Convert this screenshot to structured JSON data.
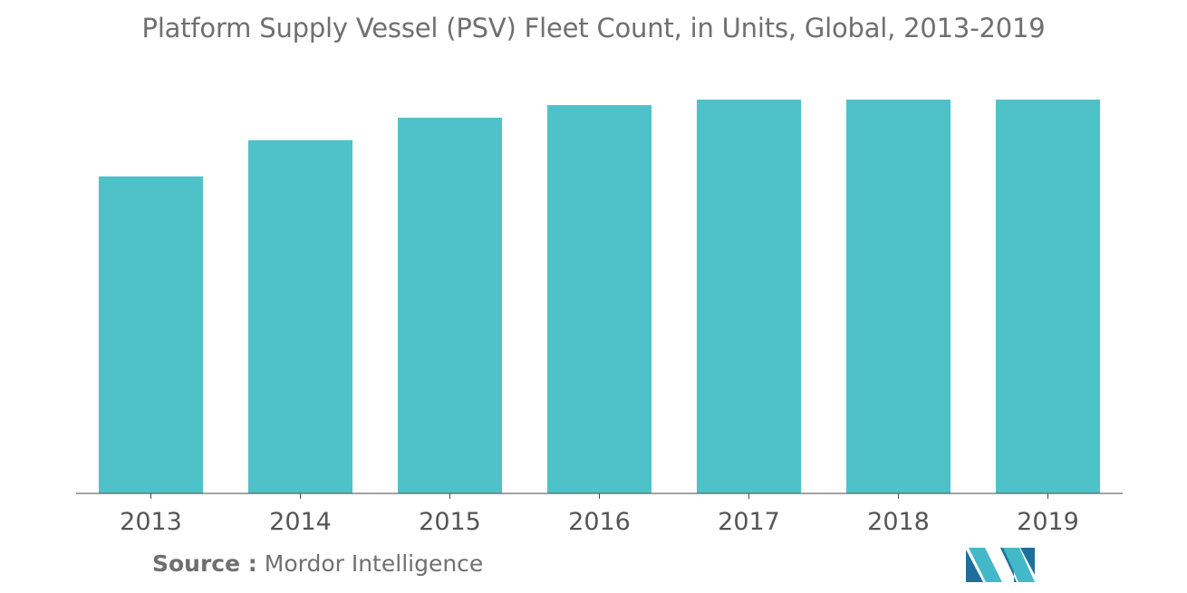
{
  "chart_data": {
    "type": "bar",
    "title": "Platform Supply Vessel (PSV) Fleet Count, in Units, Global, 2013-2019",
    "categories": [
      "2013",
      "2014",
      "2015",
      "2016",
      "2017",
      "2018",
      "2019"
    ],
    "values": [
      80.5,
      89.7,
      95.4,
      98.6,
      100,
      100,
      100
    ],
    "ylim": [
      0,
      100
    ],
    "xlabel": "",
    "ylabel": "",
    "grid": false,
    "legend": "none",
    "bar_color": "#4fc2c9",
    "axis_color": "#4a4a4a"
  },
  "source": {
    "label": "Source :",
    "value": "Mordor Intelligence"
  },
  "logo": {
    "icon": "mordor-intelligence-logo",
    "colors": [
      "#1f6f9c",
      "#43b8c9"
    ]
  }
}
